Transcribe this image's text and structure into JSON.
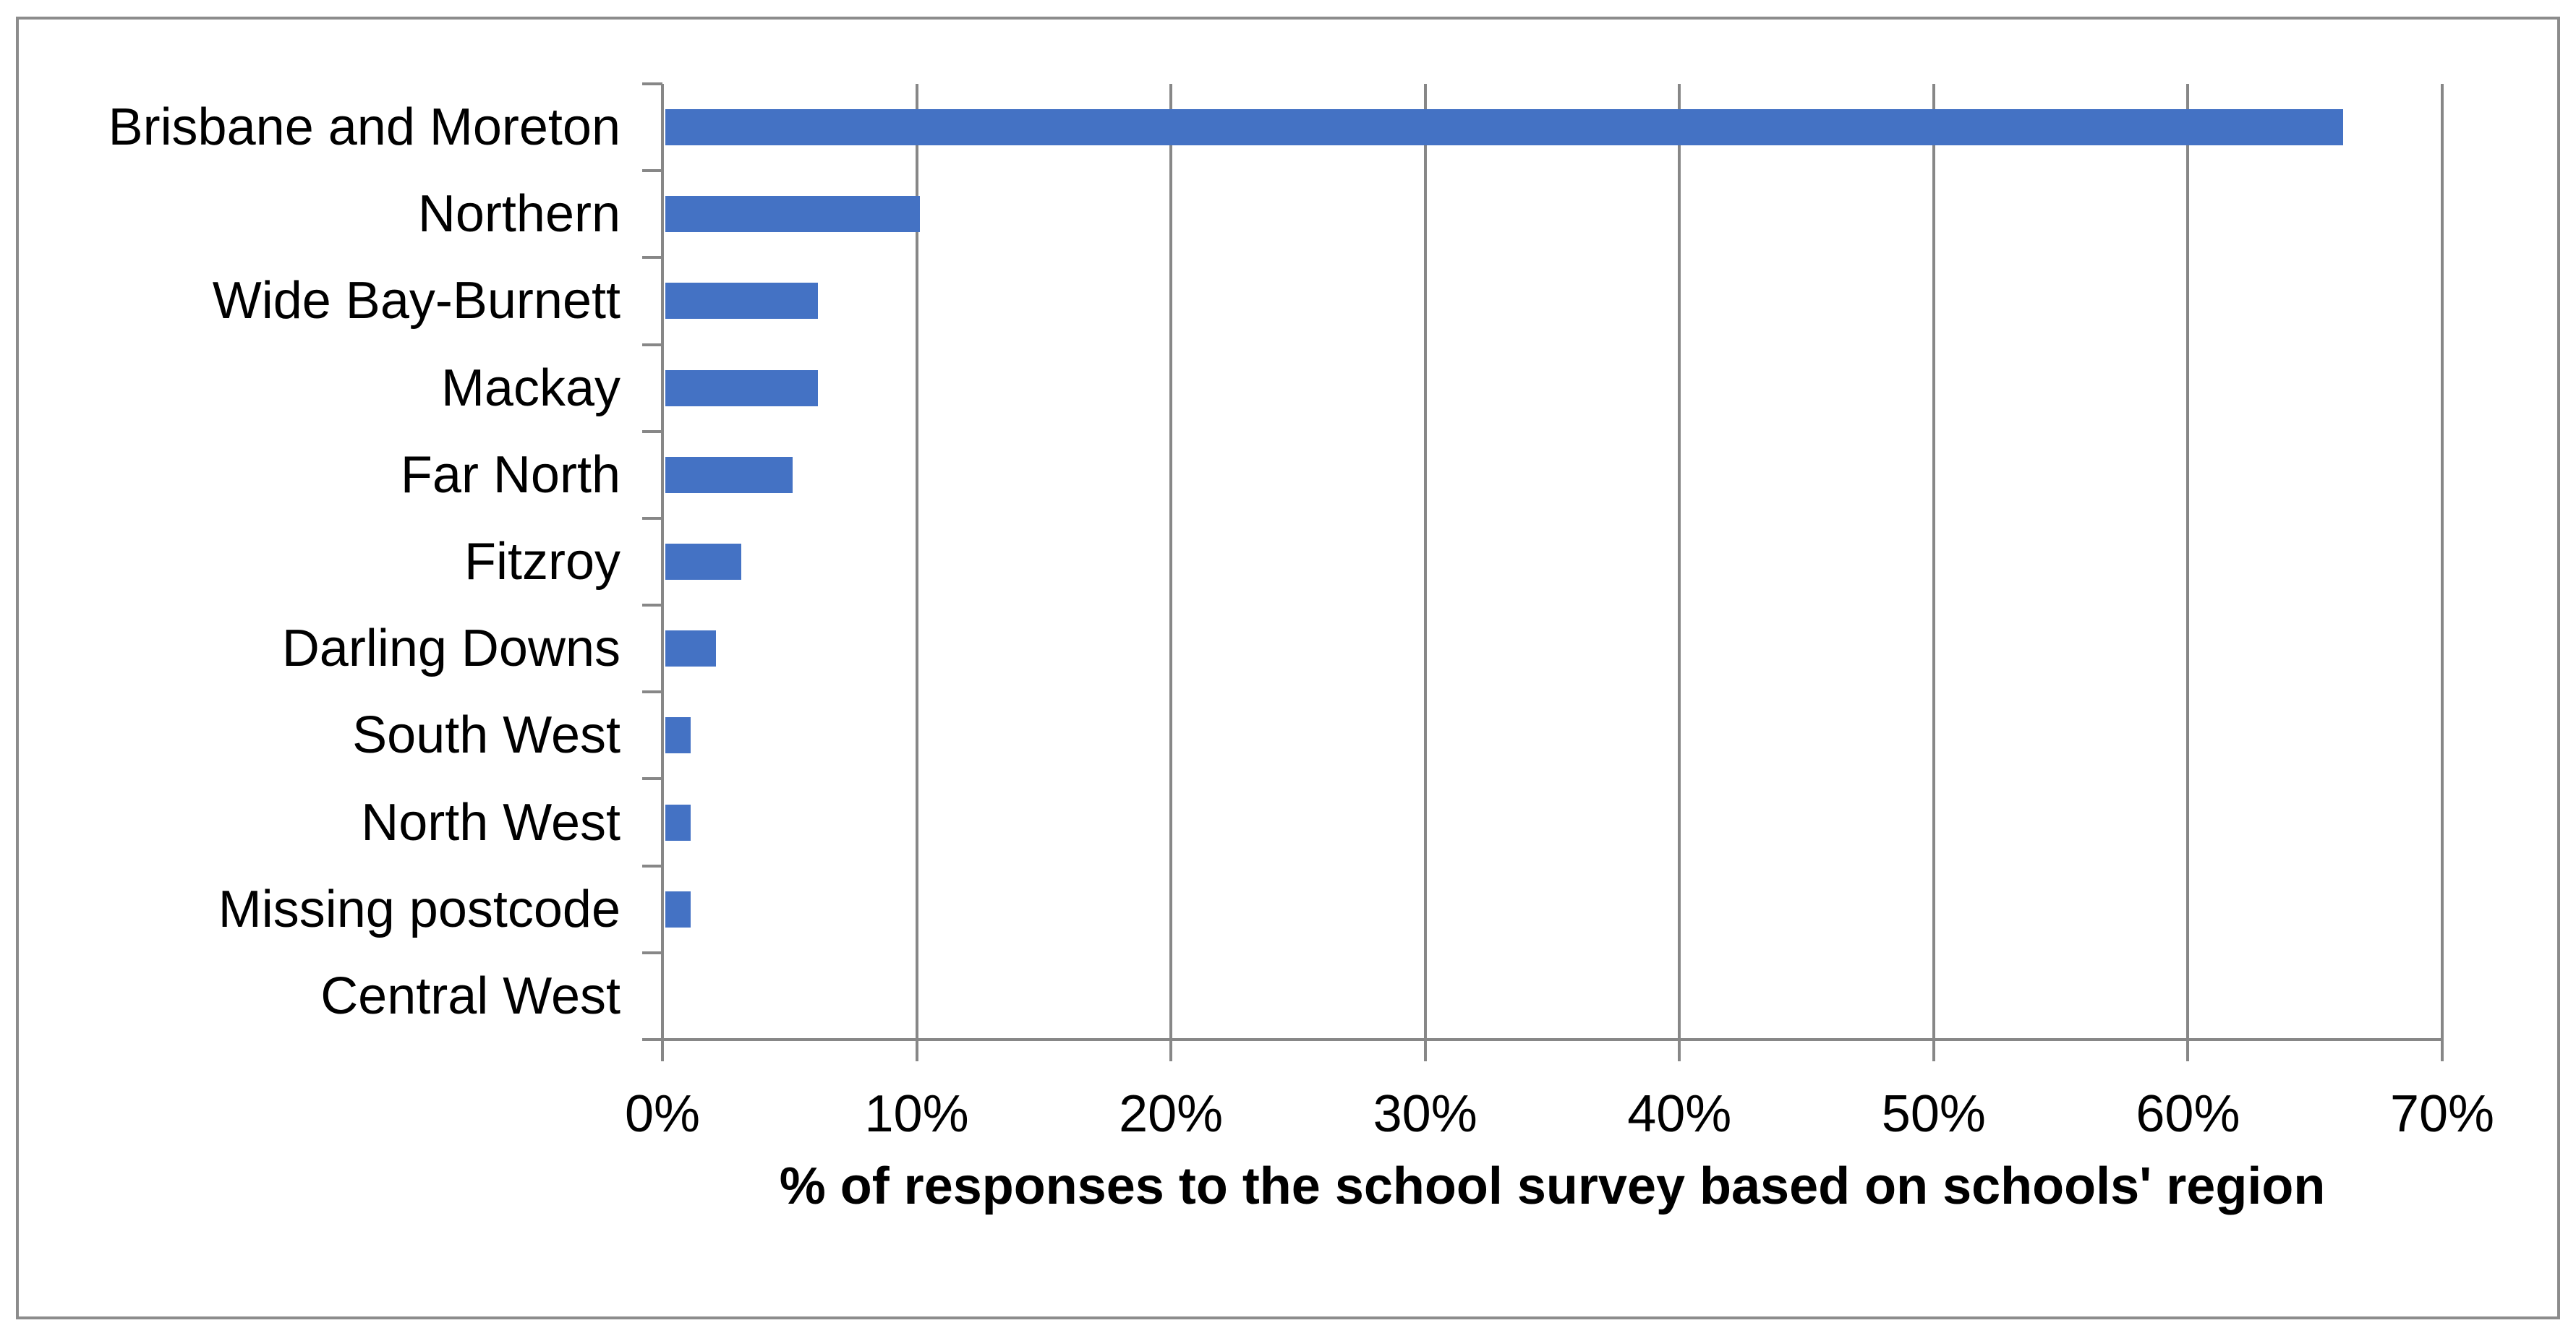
{
  "chart_data": {
    "type": "bar",
    "orientation": "horizontal",
    "title": "",
    "xlabel": "% of responses to the school survey based on schools' region",
    "ylabel": "",
    "categories": [
      "Brisbane and Moreton",
      "Northern",
      "Wide Bay-Burnett",
      "Mackay",
      "Far North",
      "Fitzroy",
      "Darling Downs",
      "South West",
      "North West",
      "Missing postcode",
      "Central West"
    ],
    "values": [
      66,
      10,
      6,
      6,
      5,
      3,
      2,
      1,
      1,
      1,
      0
    ],
    "unit": "%",
    "xlim": [
      0,
      70
    ],
    "x_tick_labels": [
      "0%",
      "10%",
      "20%",
      "30%",
      "40%",
      "50%",
      "60%",
      "70%"
    ],
    "grid": true,
    "legend": false,
    "colors": {
      "bar": "#4472C4",
      "axis": "#878787",
      "gridline": "#878787",
      "frame_border": "#8C8C8C",
      "text": "#000000",
      "background": "#FFFFFF"
    }
  }
}
